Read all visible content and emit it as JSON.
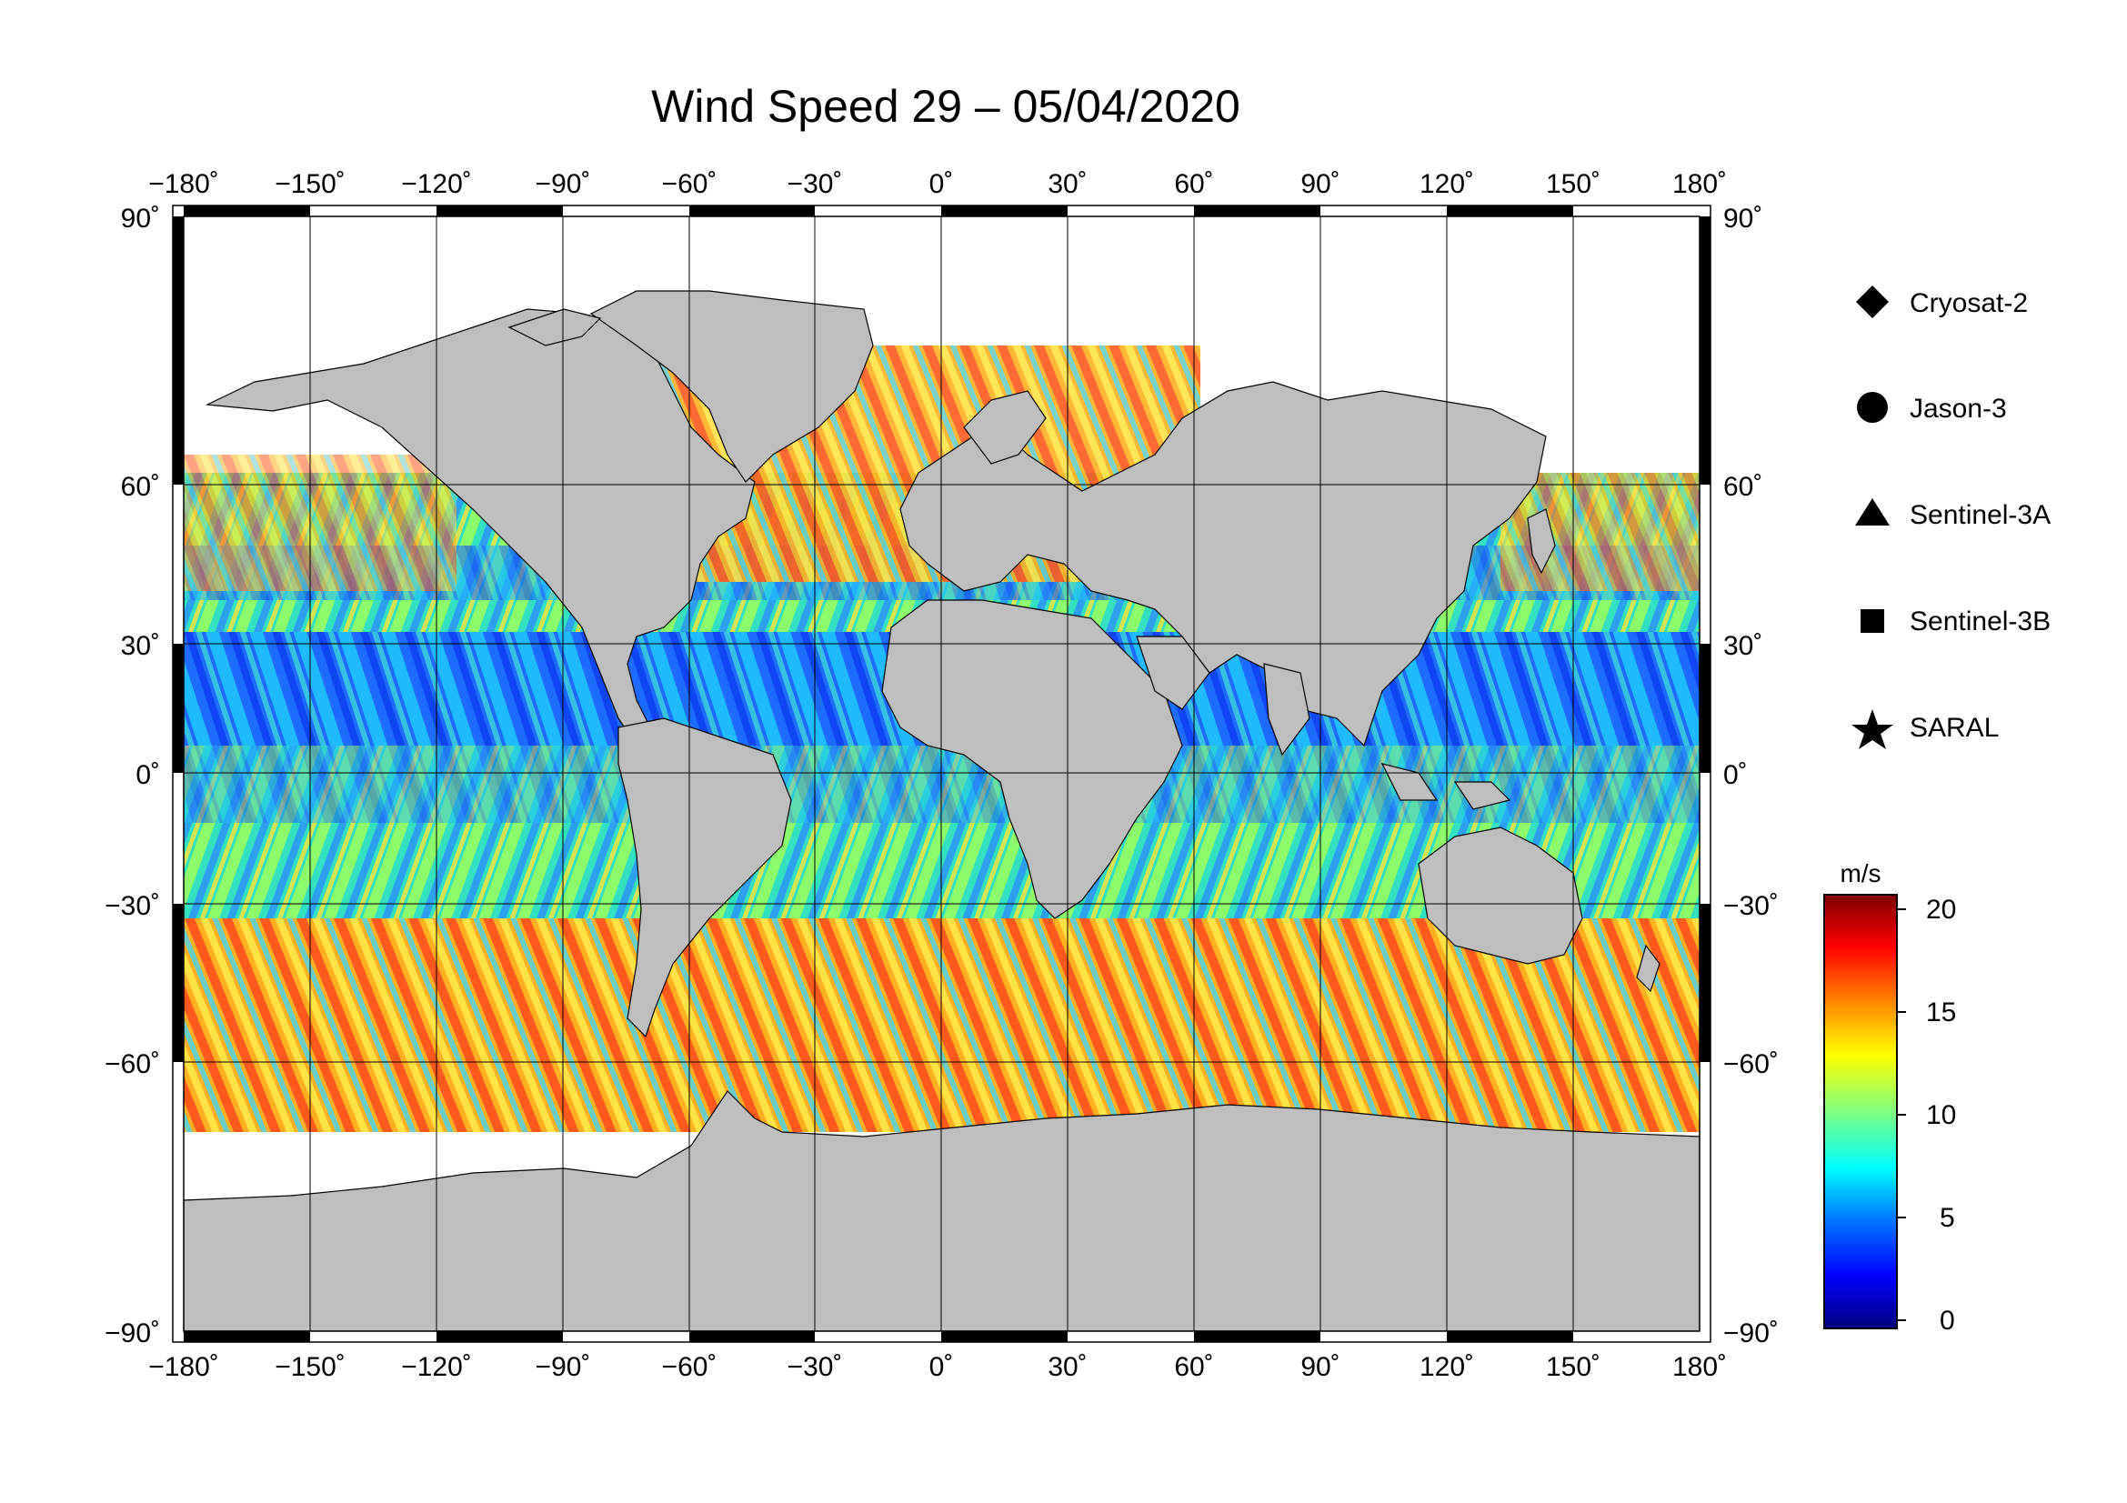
{
  "title": "Wind Speed 29 – 05/04/2020",
  "map": {
    "lon_ticks": [
      "−180˚",
      "−150˚",
      "−120˚",
      "−90˚",
      "−60˚",
      "−30˚",
      "0˚",
      "30˚",
      "60˚",
      "90˚",
      "120˚",
      "150˚",
      "180˚"
    ],
    "lat_ticks": [
      "90˚",
      "60˚",
      "30˚",
      "0˚",
      "−30˚",
      "−60˚",
      "−90˚"
    ],
    "projection": "equirectangular",
    "land_color": "#bebebe",
    "ice_color": "#ffffff"
  },
  "legend": {
    "items": [
      {
        "label": "Cryosat-2",
        "marker": "diamond"
      },
      {
        "label": "Jason-3",
        "marker": "circle"
      },
      {
        "label": "Sentinel-3A",
        "marker": "triangle"
      },
      {
        "label": "Sentinel-3B",
        "marker": "square"
      },
      {
        "label": "SARAL",
        "marker": "star"
      }
    ]
  },
  "colorbar": {
    "unit": "m/s",
    "ticks": [
      "20",
      "15",
      "10",
      "5",
      "0"
    ],
    "range": [
      0,
      21
    ],
    "colormap": [
      "#00007f",
      "#0000ff",
      "#007fff",
      "#00ffff",
      "#7fff7f",
      "#ffff00",
      "#ff7f00",
      "#ff0000",
      "#7f0000"
    ]
  }
}
